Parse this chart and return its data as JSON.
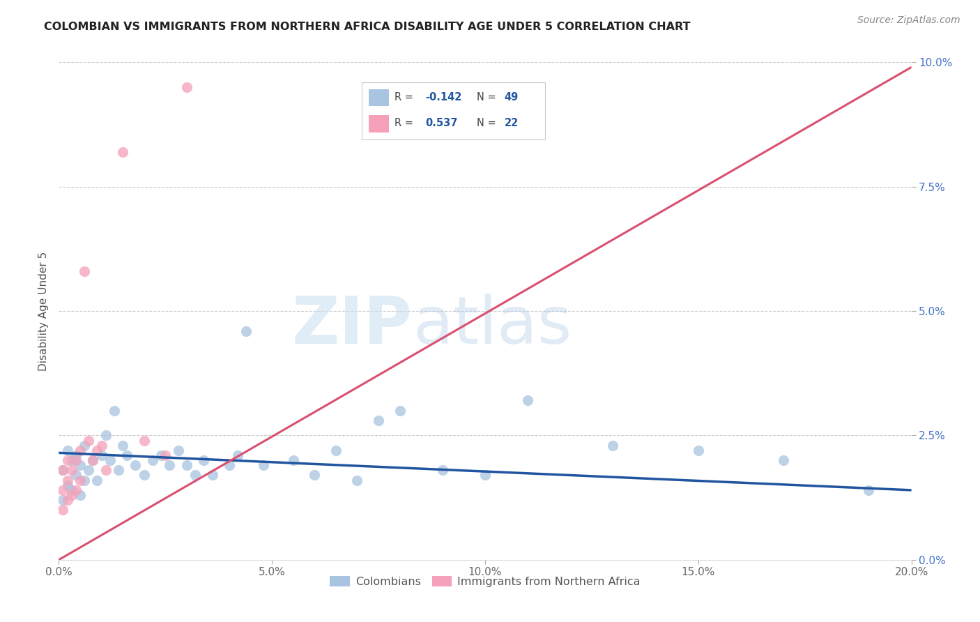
{
  "title": "COLOMBIAN VS IMMIGRANTS FROM NORTHERN AFRICA DISABILITY AGE UNDER 5 CORRELATION CHART",
  "source": "Source: ZipAtlas.com",
  "ylabel": "Disability Age Under 5",
  "xmin": 0.0,
  "xmax": 0.2,
  "ymin": 0.0,
  "ymax": 0.1,
  "colombians_R": -0.142,
  "colombians_N": 49,
  "immigrants_R": 0.537,
  "immigrants_N": 22,
  "blue_dot_color": "#a8c4e0",
  "pink_dot_color": "#f4a0b8",
  "blue_line_color": "#2155a0",
  "pink_line_color": "#d95070",
  "legend_blue_label": "Colombians",
  "legend_pink_label": "Immigrants from Northern Africa",
  "blue_line_x0": 0.0,
  "blue_line_y0": 0.0215,
  "blue_line_x1": 0.2,
  "blue_line_y1": 0.014,
  "pink_line_x0": 0.0,
  "pink_line_y0": 0.0,
  "pink_line_x1": 0.2,
  "pink_line_y1": 0.099,
  "colombians_x": [
    0.001,
    0.001,
    0.002,
    0.002,
    0.003,
    0.003,
    0.004,
    0.004,
    0.005,
    0.005,
    0.006,
    0.006,
    0.007,
    0.008,
    0.009,
    0.01,
    0.011,
    0.012,
    0.013,
    0.014,
    0.015,
    0.016,
    0.018,
    0.02,
    0.022,
    0.024,
    0.026,
    0.028,
    0.03,
    0.032,
    0.034,
    0.036,
    0.04,
    0.042,
    0.044,
    0.048,
    0.055,
    0.06,
    0.065,
    0.07,
    0.075,
    0.08,
    0.09,
    0.1,
    0.11,
    0.13,
    0.15,
    0.17,
    0.19
  ],
  "colombians_y": [
    0.018,
    0.012,
    0.022,
    0.015,
    0.02,
    0.014,
    0.021,
    0.017,
    0.019,
    0.013,
    0.023,
    0.016,
    0.018,
    0.02,
    0.016,
    0.021,
    0.025,
    0.02,
    0.03,
    0.018,
    0.023,
    0.021,
    0.019,
    0.017,
    0.02,
    0.021,
    0.019,
    0.022,
    0.019,
    0.017,
    0.02,
    0.017,
    0.019,
    0.021,
    0.046,
    0.019,
    0.02,
    0.017,
    0.022,
    0.016,
    0.028,
    0.03,
    0.018,
    0.017,
    0.032,
    0.023,
    0.022,
    0.02,
    0.014
  ],
  "immigrants_x": [
    0.001,
    0.001,
    0.001,
    0.002,
    0.002,
    0.002,
    0.003,
    0.003,
    0.004,
    0.004,
    0.005,
    0.005,
    0.006,
    0.007,
    0.008,
    0.009,
    0.01,
    0.011,
    0.015,
    0.02,
    0.025,
    0.03
  ],
  "immigrants_y": [
    0.01,
    0.014,
    0.018,
    0.012,
    0.016,
    0.02,
    0.013,
    0.018,
    0.014,
    0.02,
    0.016,
    0.022,
    0.058,
    0.024,
    0.02,
    0.022,
    0.023,
    0.018,
    0.082,
    0.024,
    0.021,
    0.095
  ],
  "watermark_zip": "ZIP",
  "watermark_atlas": "atlas",
  "marker_size": 120
}
